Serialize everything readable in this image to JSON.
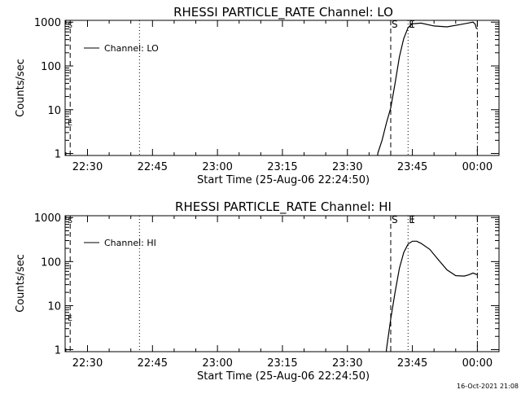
{
  "footer_timestamp": "16-Oct-2021 21:08",
  "colors": {
    "foreground": "#000000",
    "background": "#ffffff"
  },
  "chart_data": [
    {
      "type": "line",
      "title": "RHESSI PARTICLE_RATE Channel: LO",
      "xlabel": "Start Time (25-Aug-06 22:24:50)",
      "ylabel": "Counts/sec",
      "yscale": "log",
      "ylim": [
        0.9,
        1100
      ],
      "xlim": [
        "22:24:50",
        "00:05:00"
      ],
      "x_ticks": [
        "22:30",
        "22:45",
        "23:00",
        "23:15",
        "23:30",
        "23:45",
        "00:00"
      ],
      "y_ticks": [
        "1",
        "10",
        "100",
        "1000"
      ],
      "legend": {
        "position": "top-left",
        "entries": [
          "Channel: LO"
        ]
      },
      "markers": [
        {
          "label": "S",
          "time": "23:40",
          "style": "dashed"
        },
        {
          "label": "E",
          "time": "23:44",
          "style": "dotted"
        }
      ],
      "extra_lines": [
        {
          "time": "22:26",
          "style": "dashed",
          "label_chars": [
            "S",
            "E"
          ]
        },
        {
          "time": "22:42",
          "style": "dotted"
        },
        {
          "time": "00:00",
          "style": "dash-dot"
        }
      ],
      "series": [
        {
          "name": "Channel: LO",
          "x": [
            "23:37",
            "23:38",
            "23:39",
            "23:40",
            "23:41",
            "23:42",
            "23:43",
            "23:44",
            "23:45",
            "23:47",
            "23:50",
            "23:53",
            "23:56",
            "23:58",
            "23:59",
            "23:59:30",
            "23:59:50"
          ],
          "values": [
            1,
            2,
            5,
            11,
            40,
            160,
            420,
            750,
            920,
            950,
            820,
            780,
            880,
            960,
            1000,
            900,
            700
          ]
        }
      ]
    },
    {
      "type": "line",
      "title": "RHESSI PARTICLE_RATE Channel: HI",
      "xlabel": "Start Time (25-Aug-06 22:24:50)",
      "ylabel": "Counts/sec",
      "yscale": "log",
      "ylim": [
        0.9,
        1100
      ],
      "xlim": [
        "22:24:50",
        "00:05:00"
      ],
      "x_ticks": [
        "22:30",
        "22:45",
        "23:00",
        "23:15",
        "23:30",
        "23:45",
        "00:00"
      ],
      "y_ticks": [
        "1",
        "10",
        "100",
        "1000"
      ],
      "legend": {
        "position": "top-left",
        "entries": [
          "Channel: HI"
        ]
      },
      "markers": [
        {
          "label": "S",
          "time": "23:40",
          "style": "dashed"
        },
        {
          "label": "E",
          "time": "23:44",
          "style": "dotted"
        }
      ],
      "extra_lines": [
        {
          "time": "22:26",
          "style": "dashed",
          "label_chars": [
            "S",
            "E"
          ]
        },
        {
          "time": "22:42",
          "style": "dotted"
        },
        {
          "time": "00:00",
          "style": "dash-dot"
        }
      ],
      "series": [
        {
          "name": "Channel: HI",
          "x": [
            "23:39",
            "23:40",
            "23:41",
            "23:42",
            "23:43",
            "23:44",
            "23:45",
            "23:46",
            "23:47",
            "23:49",
            "23:51",
            "23:53",
            "23:55",
            "23:57",
            "23:58",
            "23:59",
            "00:00"
          ],
          "values": [
            1,
            5,
            20,
            70,
            160,
            250,
            290,
            290,
            260,
            190,
            110,
            65,
            48,
            47,
            50,
            55,
            50
          ]
        }
      ]
    }
  ]
}
